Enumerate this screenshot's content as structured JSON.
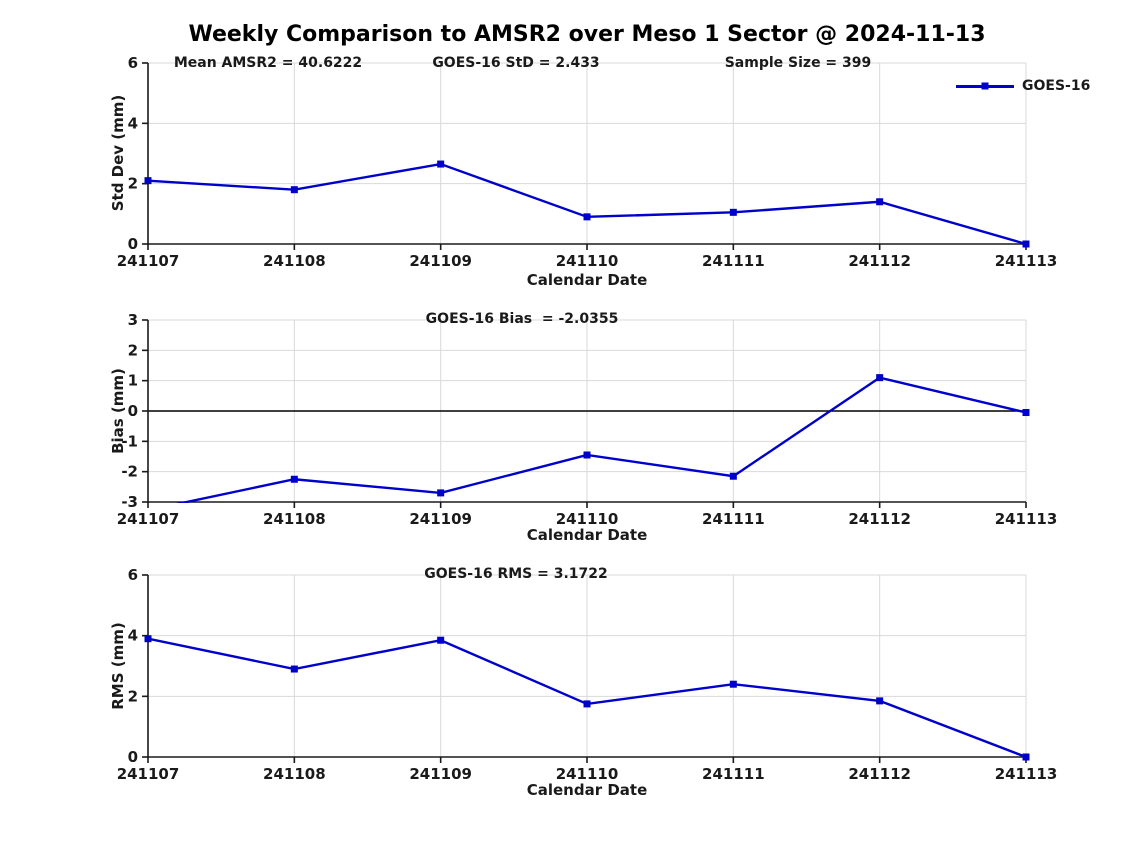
{
  "title": "Weekly Comparison to AMSR2 over Meso 1 Sector @ 2024-11-13",
  "legend": {
    "label": "GOES-16"
  },
  "colors": {
    "line": "#0000cc",
    "grid": "#d9d9d9",
    "axis": "#1a1a1a",
    "zero_line": "#000000"
  },
  "chart_data": [
    {
      "type": "line",
      "name": "std-dev",
      "categories": [
        "241107",
        "241108",
        "241109",
        "241110",
        "241111",
        "241112",
        "241113"
      ],
      "series": [
        {
          "name": "GOES-16",
          "values": [
            2.1,
            1.8,
            2.65,
            0.9,
            1.05,
            1.4,
            0.0
          ]
        }
      ],
      "xlabel": "Calendar Date",
      "ylabel": "Std Dev (mm)",
      "ylim": [
        0,
        6
      ],
      "yticks": [
        0,
        2,
        4,
        6
      ],
      "grid": true,
      "zero_line": false,
      "annotations": [
        "Mean AMSR2 = 40.6222",
        "GOES-16 StD = 2.433",
        "Sample Size = 399"
      ]
    },
    {
      "type": "line",
      "name": "bias",
      "categories": [
        "241107",
        "241108",
        "241109",
        "241110",
        "241111",
        "241112",
        "241113"
      ],
      "series": [
        {
          "name": "GOES-16",
          "values": [
            -3.27,
            -2.25,
            -2.7,
            -1.45,
            -2.15,
            1.1,
            -0.05
          ]
        }
      ],
      "xlabel": "Calendar Date",
      "ylabel": "Bias (mm)",
      "ylim": [
        -3,
        3
      ],
      "yticks": [
        -3,
        -2,
        -1,
        0,
        1,
        2,
        3
      ],
      "grid": true,
      "zero_line": true,
      "annotations": [
        "GOES-16 Bias  = -2.0355"
      ]
    },
    {
      "type": "line",
      "name": "rms",
      "categories": [
        "241107",
        "241108",
        "241109",
        "241110",
        "241111",
        "241112",
        "241113"
      ],
      "series": [
        {
          "name": "GOES-16",
          "values": [
            3.9,
            2.9,
            3.85,
            1.75,
            2.4,
            1.85,
            0.0
          ]
        }
      ],
      "xlabel": "Calendar Date",
      "ylabel": "RMS (mm)",
      "ylim": [
        0,
        6
      ],
      "yticks": [
        0,
        2,
        4,
        6
      ],
      "grid": true,
      "zero_line": false,
      "annotations": [
        "GOES-16 RMS = 3.1722"
      ]
    }
  ]
}
